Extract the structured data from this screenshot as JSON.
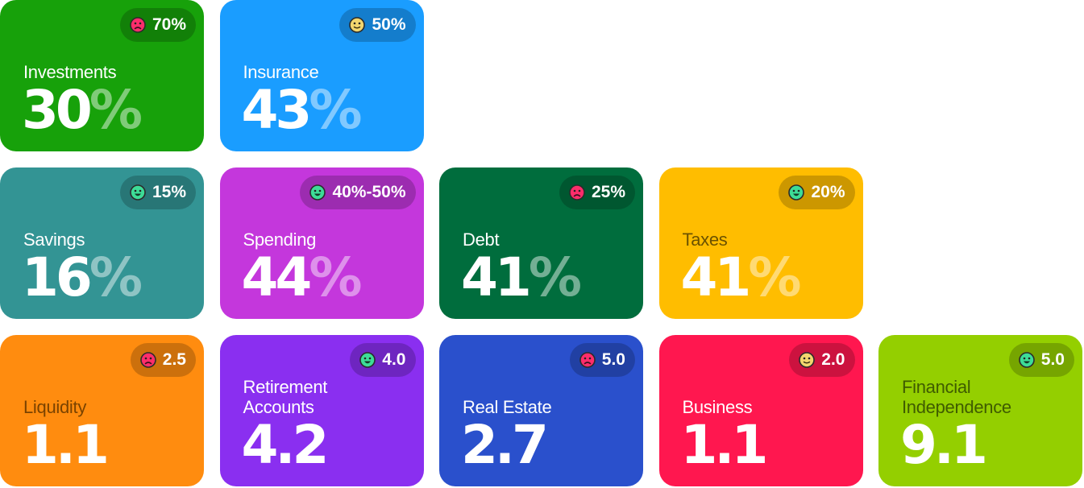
{
  "face_colors": {
    "sad": "#ff2d6b",
    "neutral": "#f2d66e",
    "happy": "#3ddc97"
  },
  "cards": [
    {
      "label": "Investments",
      "value": "30",
      "unit": "%",
      "badge_icon": "sad",
      "badge_text": "70%",
      "color": "#17a10a",
      "label_color": "#ffffff",
      "row": 0,
      "col": 0
    },
    {
      "label": "Insurance",
      "value": "43",
      "unit": "%",
      "badge_icon": "neutral",
      "badge_text": "50%",
      "color": "#1a9dff",
      "label_color": "#ffffff",
      "row": 0,
      "col": 1
    },
    {
      "label": "Savings",
      "value": "16",
      "unit": "%",
      "badge_icon": "happy",
      "badge_text": "15%",
      "color": "#339494",
      "label_color": "#ffffff",
      "row": 1,
      "col": 0
    },
    {
      "label": "Spending",
      "value": "44",
      "unit": "%",
      "badge_icon": "happy",
      "badge_text": "40%-50%",
      "color": "#c437dc",
      "label_color": "#ffffff",
      "row": 1,
      "col": 1
    },
    {
      "label": "Debt",
      "value": "41",
      "unit": "%",
      "badge_icon": "sad",
      "badge_text": "25%",
      "color": "#006d3d",
      "label_color": "#ffffff",
      "row": 1,
      "col": 2
    },
    {
      "label": "Taxes",
      "value": "41",
      "unit": "%",
      "badge_icon": "happy",
      "badge_text": "20%",
      "color": "#ffbd00",
      "label_color": "#6b5200",
      "row": 1,
      "col": 3
    },
    {
      "label": "Liquidity",
      "value": "1.1",
      "unit": "",
      "badge_icon": "sad",
      "badge_text": "2.5",
      "color": "#ff8c0f",
      "label_color": "#7a4300",
      "row": 2,
      "col": 0
    },
    {
      "label": "Retirement Accounts",
      "value": "4.2",
      "unit": "",
      "badge_icon": "happy",
      "badge_text": "4.0",
      "color": "#8a2ff0",
      "label_color": "#ffffff",
      "row": 2,
      "col": 1
    },
    {
      "label": "Real Estate",
      "value": "2.7",
      "unit": "",
      "badge_icon": "sad",
      "badge_text": "5.0",
      "color": "#2a50cc",
      "label_color": "#ffffff",
      "row": 2,
      "col": 2
    },
    {
      "label": "Business",
      "value": "1.1",
      "unit": "",
      "badge_icon": "neutral",
      "badge_text": "2.0",
      "color": "#ff174f",
      "label_color": "#ffffff",
      "row": 2,
      "col": 3
    },
    {
      "label": "Financial Independence",
      "value": "9.1",
      "unit": "",
      "badge_icon": "happy",
      "badge_text": "5.0",
      "color": "#94cf00",
      "label_color": "#3f5c00",
      "row": 2,
      "col": 4
    }
  ]
}
